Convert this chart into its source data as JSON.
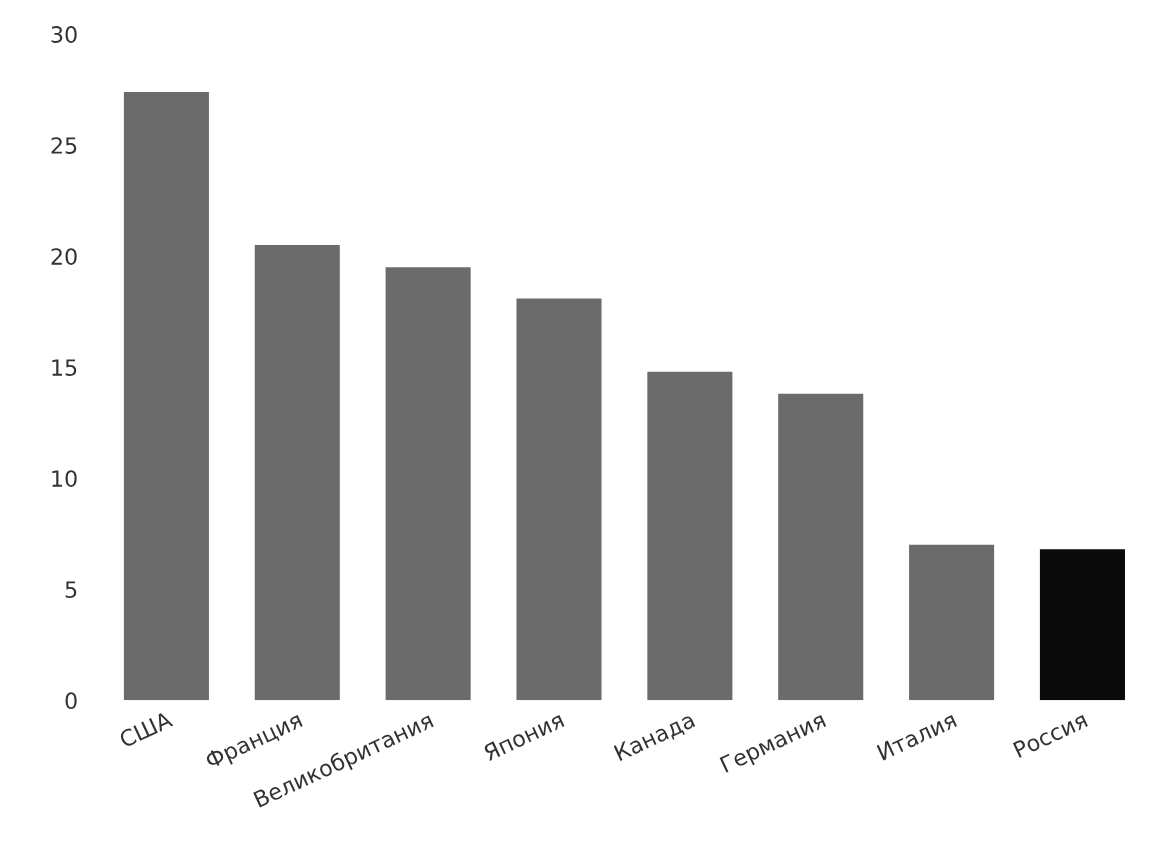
{
  "chart_data": {
    "type": "bar",
    "categories": [
      "США",
      "Франция",
      "Великобритания",
      "Япония",
      "Канада",
      "Германия",
      "Италия",
      "Россия"
    ],
    "values": [
      27.4,
      20.5,
      19.5,
      18.1,
      14.8,
      13.8,
      7.0,
      6.8
    ],
    "colors": [
      "#6b6b6b",
      "#6b6b6b",
      "#6b6b6b",
      "#6b6b6b",
      "#6b6b6b",
      "#6b6b6b",
      "#6b6b6b",
      "#0a0a0a"
    ],
    "ylim": [
      0,
      30
    ],
    "yticks": [
      0,
      5,
      10,
      15,
      20,
      25,
      30
    ],
    "grid": false
  }
}
